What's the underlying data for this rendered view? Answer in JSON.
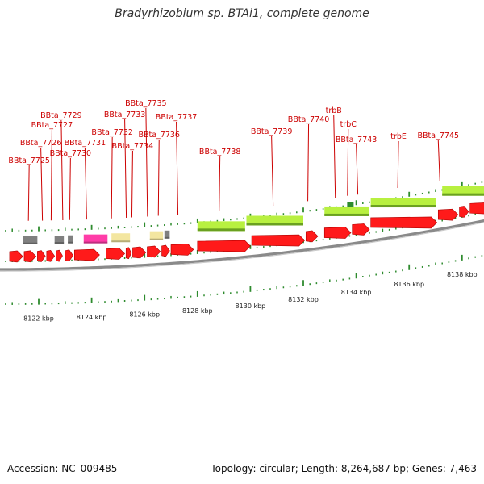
{
  "title": "Bradyrhizobium sp. BTAi1, complete genome",
  "footer": {
    "accession": "Accession: NC_009485",
    "topology": "Topology: circular; Length: 8,264,687 bp; Genes: 7,463"
  },
  "colors": {
    "forward_gene": "#ff1a1a",
    "lime_feature": "#b8f040",
    "pink_feature": "#ff3ca8",
    "yellow_feature": "#f3e6a0",
    "gray_feature": "#808080",
    "label": "#cc0000",
    "backbone": "#8a8a8a",
    "tick": "#2e8b2e"
  },
  "gene_labels": [
    {
      "text": "BBta_7725",
      "kbp": 8121.64
    },
    {
      "text": "BBta_7726",
      "kbp": 8122.08
    },
    {
      "text": "BBta_7727",
      "kbp": 8122.5
    },
    {
      "text": "BBta_7729",
      "kbp": 8122.85
    },
    {
      "text": "BBta_7730",
      "kbp": 8123.2
    },
    {
      "text": "BBta_7731",
      "kbp": 8123.75
    },
    {
      "text": "BBta_7732",
      "kbp": 8124.78
    },
    {
      "text": "BBta_7733",
      "kbp": 8125.25
    },
    {
      "text": "BBta_7734",
      "kbp": 8125.55
    },
    {
      "text": "BBta_7735",
      "kbp": 8126.05
    },
    {
      "text": "BBta_7736",
      "kbp": 8126.55
    },
    {
      "text": "BBta_7737",
      "kbp": 8127.2
    },
    {
      "text": "BBta_7738",
      "kbp": 8128.85
    },
    {
      "text": "BBta_7739",
      "kbp": 8130.8
    },
    {
      "text": "BBta_7740",
      "kbp": 8132.2
    },
    {
      "text": "trbB",
      "kbp": 8133.15
    },
    {
      "text": "trbC",
      "kbp": 8133.7
    },
    {
      "text": "BBta_7743",
      "kbp": 8134.0
    },
    {
      "text": "trbE",
      "kbp": 8135.6
    },
    {
      "text": "BBta_7745",
      "kbp": 8137.1
    }
  ],
  "features": [
    {
      "kind": "forward_gene",
      "start": 8120.9,
      "end": 8121.4
    },
    {
      "kind": "forward_gene",
      "start": 8121.45,
      "end": 8121.9
    },
    {
      "kind": "forward_gene",
      "start": 8121.95,
      "end": 8122.25
    },
    {
      "kind": "forward_gene",
      "start": 8122.3,
      "end": 8122.6
    },
    {
      "kind": "forward_gene",
      "start": 8122.65,
      "end": 8122.9
    },
    {
      "kind": "forward_gene",
      "start": 8123.0,
      "end": 8123.3
    },
    {
      "kind": "forward_gene",
      "start": 8123.35,
      "end": 8124.3
    },
    {
      "kind": "forward_gene",
      "start": 8124.55,
      "end": 8125.25
    },
    {
      "kind": "forward_gene",
      "start": 8125.3,
      "end": 8125.5
    },
    {
      "kind": "forward_gene",
      "start": 8125.55,
      "end": 8126.05
    },
    {
      "kind": "forward_gene",
      "start": 8126.1,
      "end": 8126.6
    },
    {
      "kind": "forward_gene",
      "start": 8126.65,
      "end": 8126.95
    },
    {
      "kind": "forward_gene",
      "start": 8127.0,
      "end": 8127.85
    },
    {
      "kind": "forward_gene",
      "start": 8128.0,
      "end": 8130.0
    },
    {
      "kind": "forward_gene",
      "start": 8130.05,
      "end": 8132.05
    },
    {
      "kind": "forward_gene",
      "start": 8132.1,
      "end": 8132.55
    },
    {
      "kind": "forward_gene",
      "start": 8132.8,
      "end": 8133.8
    },
    {
      "kind": "forward_gene",
      "start": 8133.85,
      "end": 8134.5
    },
    {
      "kind": "forward_gene",
      "start": 8134.55,
      "end": 8137.05
    },
    {
      "kind": "forward_gene",
      "start": 8137.1,
      "end": 8137.85
    },
    {
      "kind": "forward_gene",
      "start": 8137.9,
      "end": 8138.25
    },
    {
      "kind": "forward_gene",
      "start": 8138.3,
      "end": 8139.4
    },
    {
      "kind": "gray_feature",
      "start": 8121.4,
      "end": 8121.95
    },
    {
      "kind": "gray_feature",
      "start": 8122.6,
      "end": 8122.95
    },
    {
      "kind": "gray_feature",
      "start": 8123.1,
      "end": 8123.3
    },
    {
      "kind": "pink_feature",
      "start": 8123.7,
      "end": 8124.6
    },
    {
      "kind": "yellow_feature",
      "start": 8124.75,
      "end": 8125.45
    },
    {
      "kind": "yellow_feature",
      "start": 8126.2,
      "end": 8126.7
    },
    {
      "kind": "gray_feature",
      "start": 8126.75,
      "end": 8126.95
    },
    {
      "kind": "lime_feature",
      "start": 8128.0,
      "end": 8129.8
    },
    {
      "kind": "lime_feature",
      "start": 8129.85,
      "end": 8132.0
    },
    {
      "kind": "lime_feature",
      "start": 8132.8,
      "end": 8134.5
    },
    {
      "kind": "lime_feature",
      "start": 8134.55,
      "end": 8137.0
    },
    {
      "kind": "lime_feature",
      "start": 8137.25,
      "end": 8139.4
    }
  ],
  "scale": {
    "major_start": 8120,
    "major_end": 8140,
    "major_step": 2,
    "minor_step": 0.25,
    "labels": [
      {
        "kbp": 8122,
        "text": "8122 kbp"
      },
      {
        "kbp": 8124,
        "text": "8124 kbp"
      },
      {
        "kbp": 8126,
        "text": "8126 kbp"
      },
      {
        "kbp": 8128,
        "text": "8128 kbp"
      },
      {
        "kbp": 8130,
        "text": "8130 kbp"
      },
      {
        "kbp": 8132,
        "text": "8132 kbp"
      },
      {
        "kbp": 8134,
        "text": "8134 kbp"
      },
      {
        "kbp": 8136,
        "text": "8136 kbp"
      },
      {
        "kbp": 8138,
        "text": "8138 kbp"
      }
    ]
  }
}
